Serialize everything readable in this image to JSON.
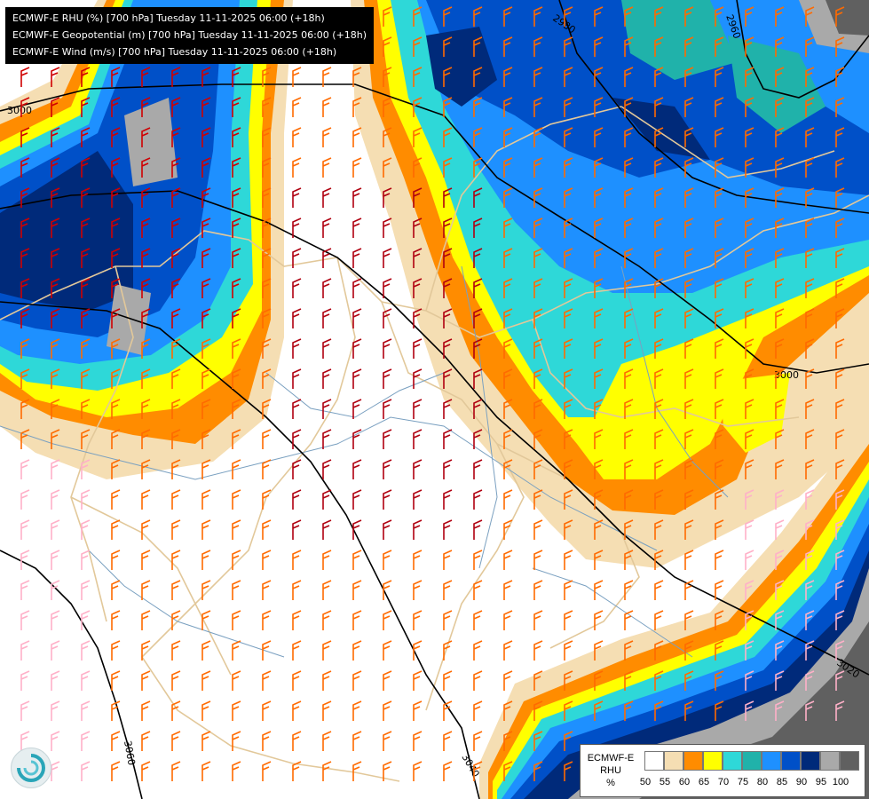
{
  "titles": {
    "line1": "ECMWF-E RHU (%) [700 hPa] Tuesday 11-11-2025 06:00 (+18h)",
    "line2": "ECMWF-E Geopotential (m) [700 hPa] Tuesday 11-11-2025 06:00 (+18h)",
    "line3": "ECMWF-E Wind (m/s) [700 hPa] Tuesday 11-11-2025 06:00 (+18h)"
  },
  "legend": {
    "model": "ECMWF-E",
    "param": "RHU",
    "unit": "%",
    "levels": [
      "50",
      "55",
      "60",
      "65",
      "70",
      "75",
      "80",
      "85",
      "90",
      "95",
      "100"
    ],
    "colors": [
      "#ffffff",
      "#f5deb3",
      "#ff8c00",
      "#ffff00",
      "#2ed8d8",
      "#20b2aa",
      "#1e90ff",
      "#0050c8",
      "#002a7a",
      "#a9a9a9",
      "#606060"
    ]
  },
  "contour_labels": [
    "3000",
    "2980",
    "2960",
    "3000",
    "3040",
    "3060",
    "3020",
    "3040"
  ],
  "icons": {
    "logo": "swirl-logo-icon"
  },
  "colors": {
    "rhu_overlay": "#f5deb3",
    "geopotential": "#000000",
    "borders": "#e2c89a",
    "rivers": "#7aa0c0"
  }
}
